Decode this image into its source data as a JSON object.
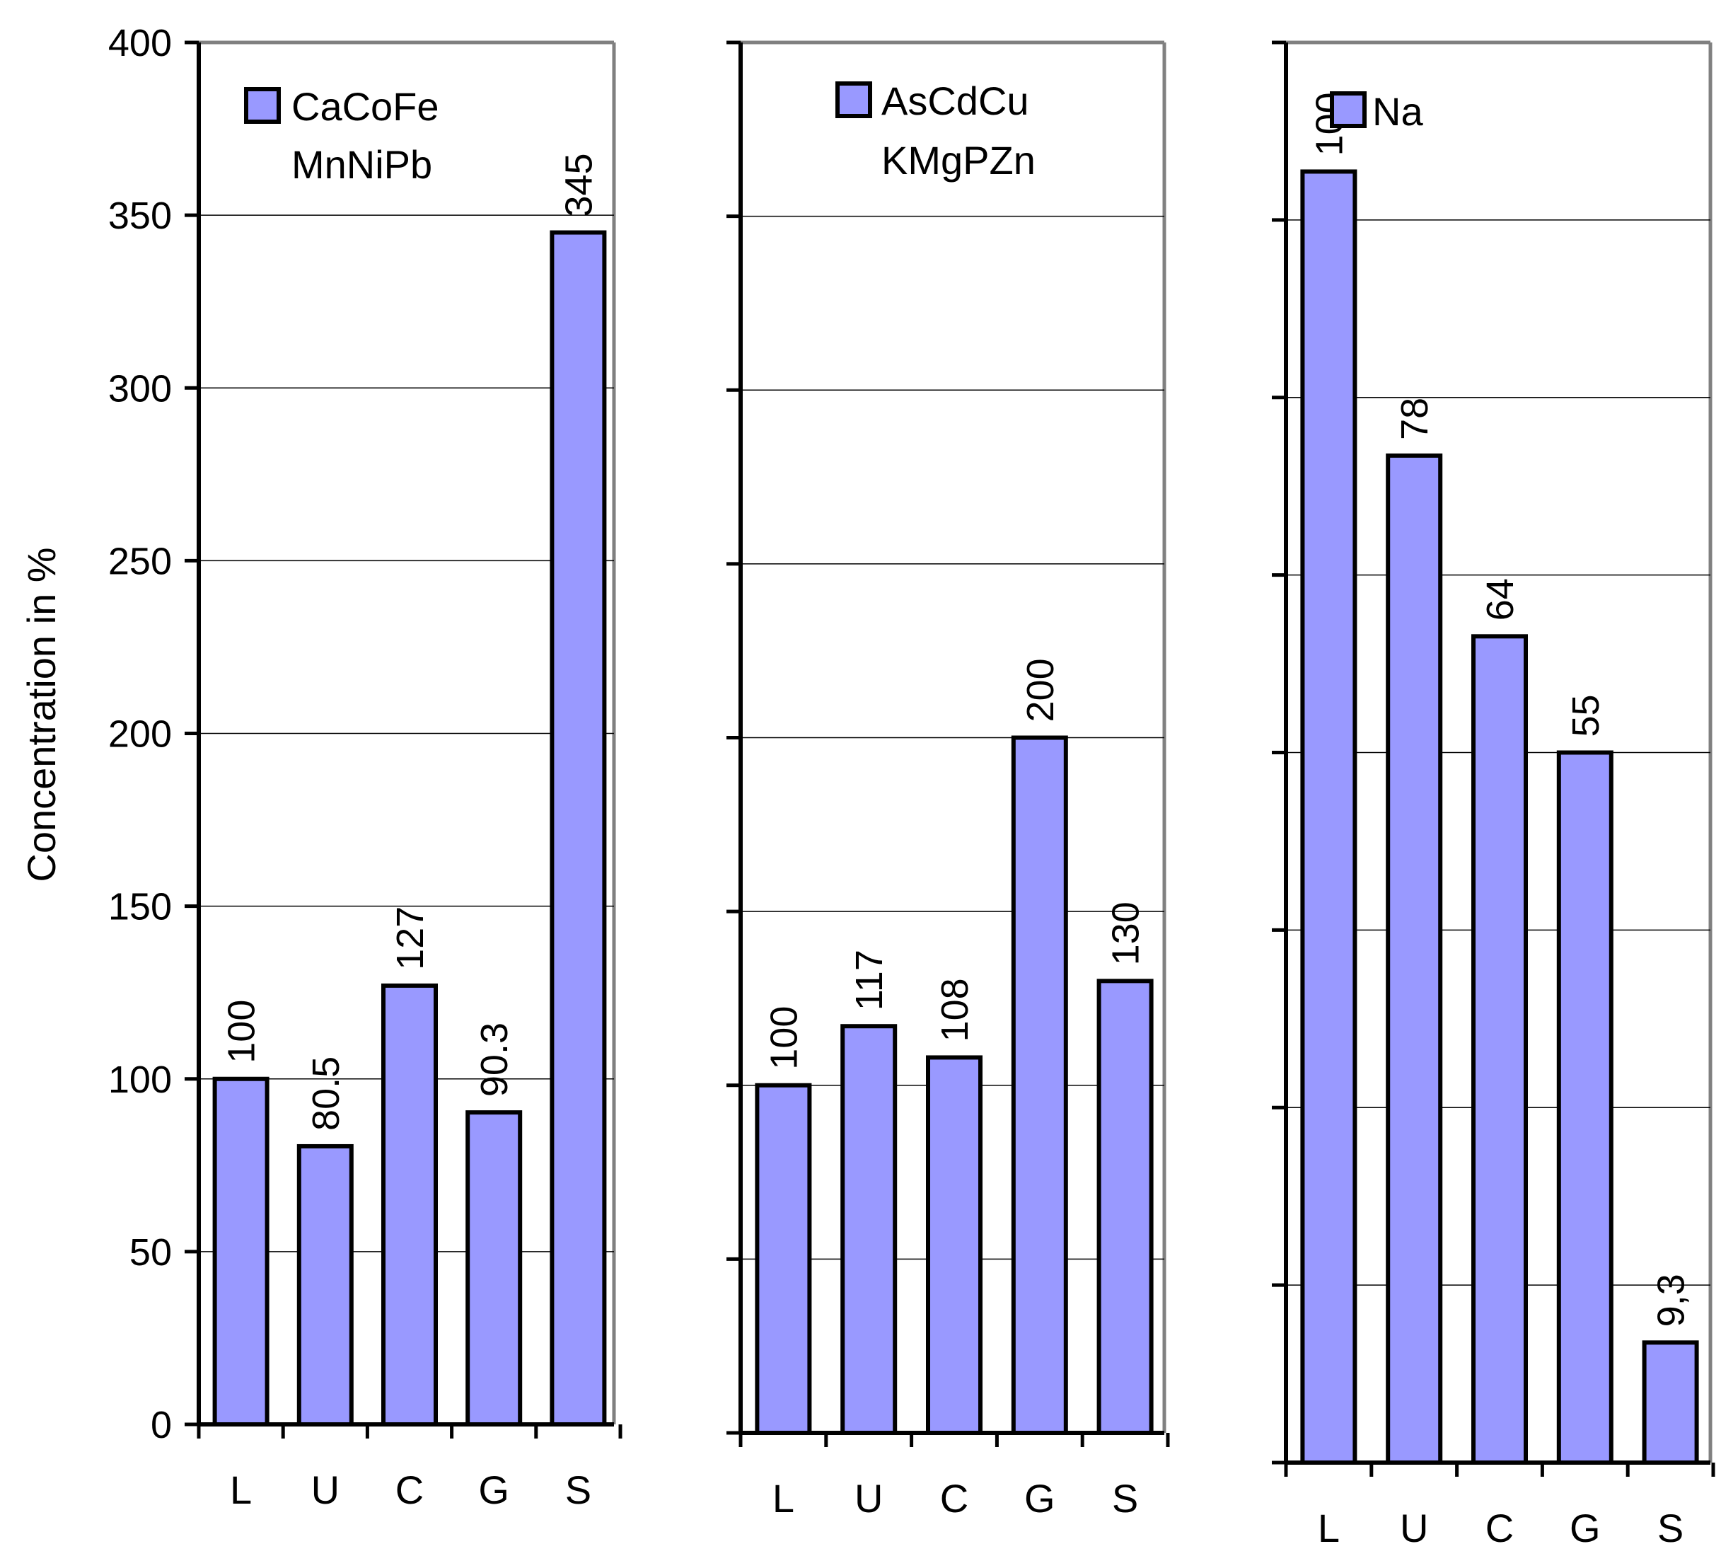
{
  "chart_data": [
    {
      "type": "bar",
      "ylabel": "Concentration in %",
      "ylim": [
        0,
        400
      ],
      "yticks": [
        0,
        50,
        100,
        150,
        200,
        250,
        300,
        350,
        400
      ],
      "categories": [
        "L",
        "U",
        "C",
        "G",
        "S"
      ],
      "series": [
        {
          "name": "CaCoFe MnNiPb",
          "values": [
            100,
            80.5,
            127,
            90.3,
            345
          ]
        }
      ],
      "legend": {
        "lines": [
          "CaCoFe",
          "MnNiPb"
        ]
      },
      "data_labels": [
        "100",
        "80.5",
        "127",
        "90.3",
        "345"
      ]
    },
    {
      "type": "bar",
      "ylim": [
        0,
        400
      ],
      "categories": [
        "L",
        "U",
        "C",
        "G",
        "S"
      ],
      "series": [
        {
          "name": "AsCdCu KMgPZn",
          "values": [
            100,
            117,
            108,
            200,
            130
          ]
        }
      ],
      "legend": {
        "lines": [
          "AsCdCu",
          "KMgPZn"
        ]
      },
      "data_labels": [
        "100",
        "117",
        "108",
        "200",
        "130"
      ]
    },
    {
      "type": "bar",
      "ylim": [
        0,
        110
      ],
      "categories": [
        "L",
        "U",
        "C",
        "G",
        "S"
      ],
      "series": [
        {
          "name": "Na",
          "values": [
            100,
            78,
            64,
            55,
            9.3
          ]
        }
      ],
      "legend": {
        "lines": [
          "Na"
        ]
      },
      "data_labels": [
        "100",
        "78",
        "64",
        "55",
        "9,3"
      ]
    }
  ],
  "colors": {
    "bar_fill": "#9999ff",
    "bar_stroke": "#000000",
    "grid": "#000000",
    "frame": "#808080"
  }
}
